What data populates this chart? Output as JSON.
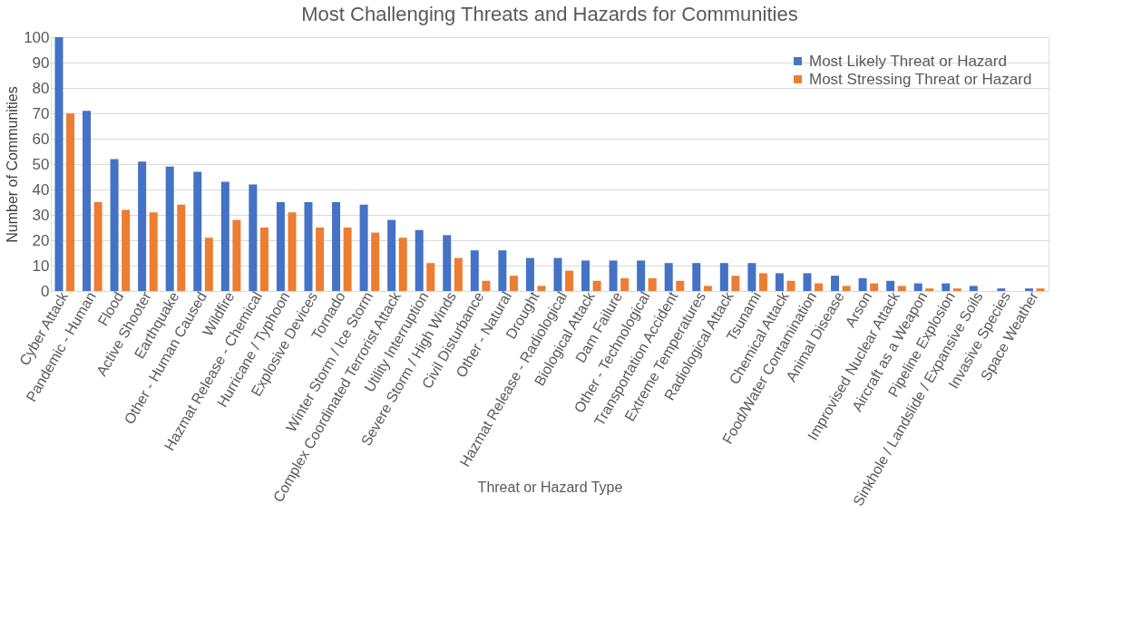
{
  "chart_data": {
    "type": "bar",
    "title": "Most Challenging Threats and Hazards for Communities",
    "xlabel": "Threat or Hazard Type",
    "ylabel": "Number of Communities",
    "categories": [
      "Cyber Attack",
      "Pandemic - Human",
      "Flood",
      "Active Shooter",
      "Earthquake",
      "Other - Human Caused",
      "Wildfire",
      "Hazmat Release - Chemical",
      "Hurricane / Typhoon",
      "Explosive Devices",
      "Tornado",
      "Winter Storm / Ice Storm",
      "Complex Coordinated Terrorist Attack",
      "Utility Interruption",
      "Severe Storm / High Winds",
      "Civil Disturbance",
      "Other - Natural",
      "Drought",
      "Hazmat Release - Radiological",
      "Biological Attack",
      "Dam Failure",
      "Other - Technological",
      "Transportation Accident",
      "Extreme Temperatures",
      "Radiological Attack",
      "Tsunami",
      "Chemical Attack",
      "Food/Water Contamination",
      "Animal Disease",
      "Arson",
      "Improvised Nuclear Attack",
      "Aircraft as a Weapon",
      "Pipeline Explosion",
      "Sinkhole / Landslide / Expansive Soils",
      "Invasive Species",
      "Space Weather"
    ],
    "series": [
      {
        "name": "Most Likely Threat or Hazard",
        "color": "#4472c4",
        "values": [
          100,
          71,
          52,
          51,
          49,
          47,
          43,
          42,
          35,
          35,
          35,
          34,
          28,
          24,
          22,
          16,
          16,
          13,
          13,
          12,
          12,
          12,
          11,
          11,
          11,
          11,
          7,
          7,
          6,
          5,
          4,
          3,
          3,
          2,
          1,
          1
        ]
      },
      {
        "name": "Most Stressing Threat or Hazard",
        "color": "#ed7d31",
        "values": [
          70,
          35,
          32,
          31,
          34,
          21,
          28,
          25,
          31,
          25,
          25,
          23,
          21,
          11,
          13,
          4,
          6,
          2,
          8,
          4,
          5,
          5,
          4,
          2,
          6,
          7,
          4,
          3,
          2,
          3,
          2,
          1,
          1,
          0,
          0,
          1
        ]
      }
    ],
    "ylim": [
      0,
      100
    ],
    "yticks": [
      0,
      10,
      20,
      30,
      40,
      50,
      60,
      70,
      80,
      90,
      100
    ],
    "grid": "y",
    "legend": "top right"
  }
}
